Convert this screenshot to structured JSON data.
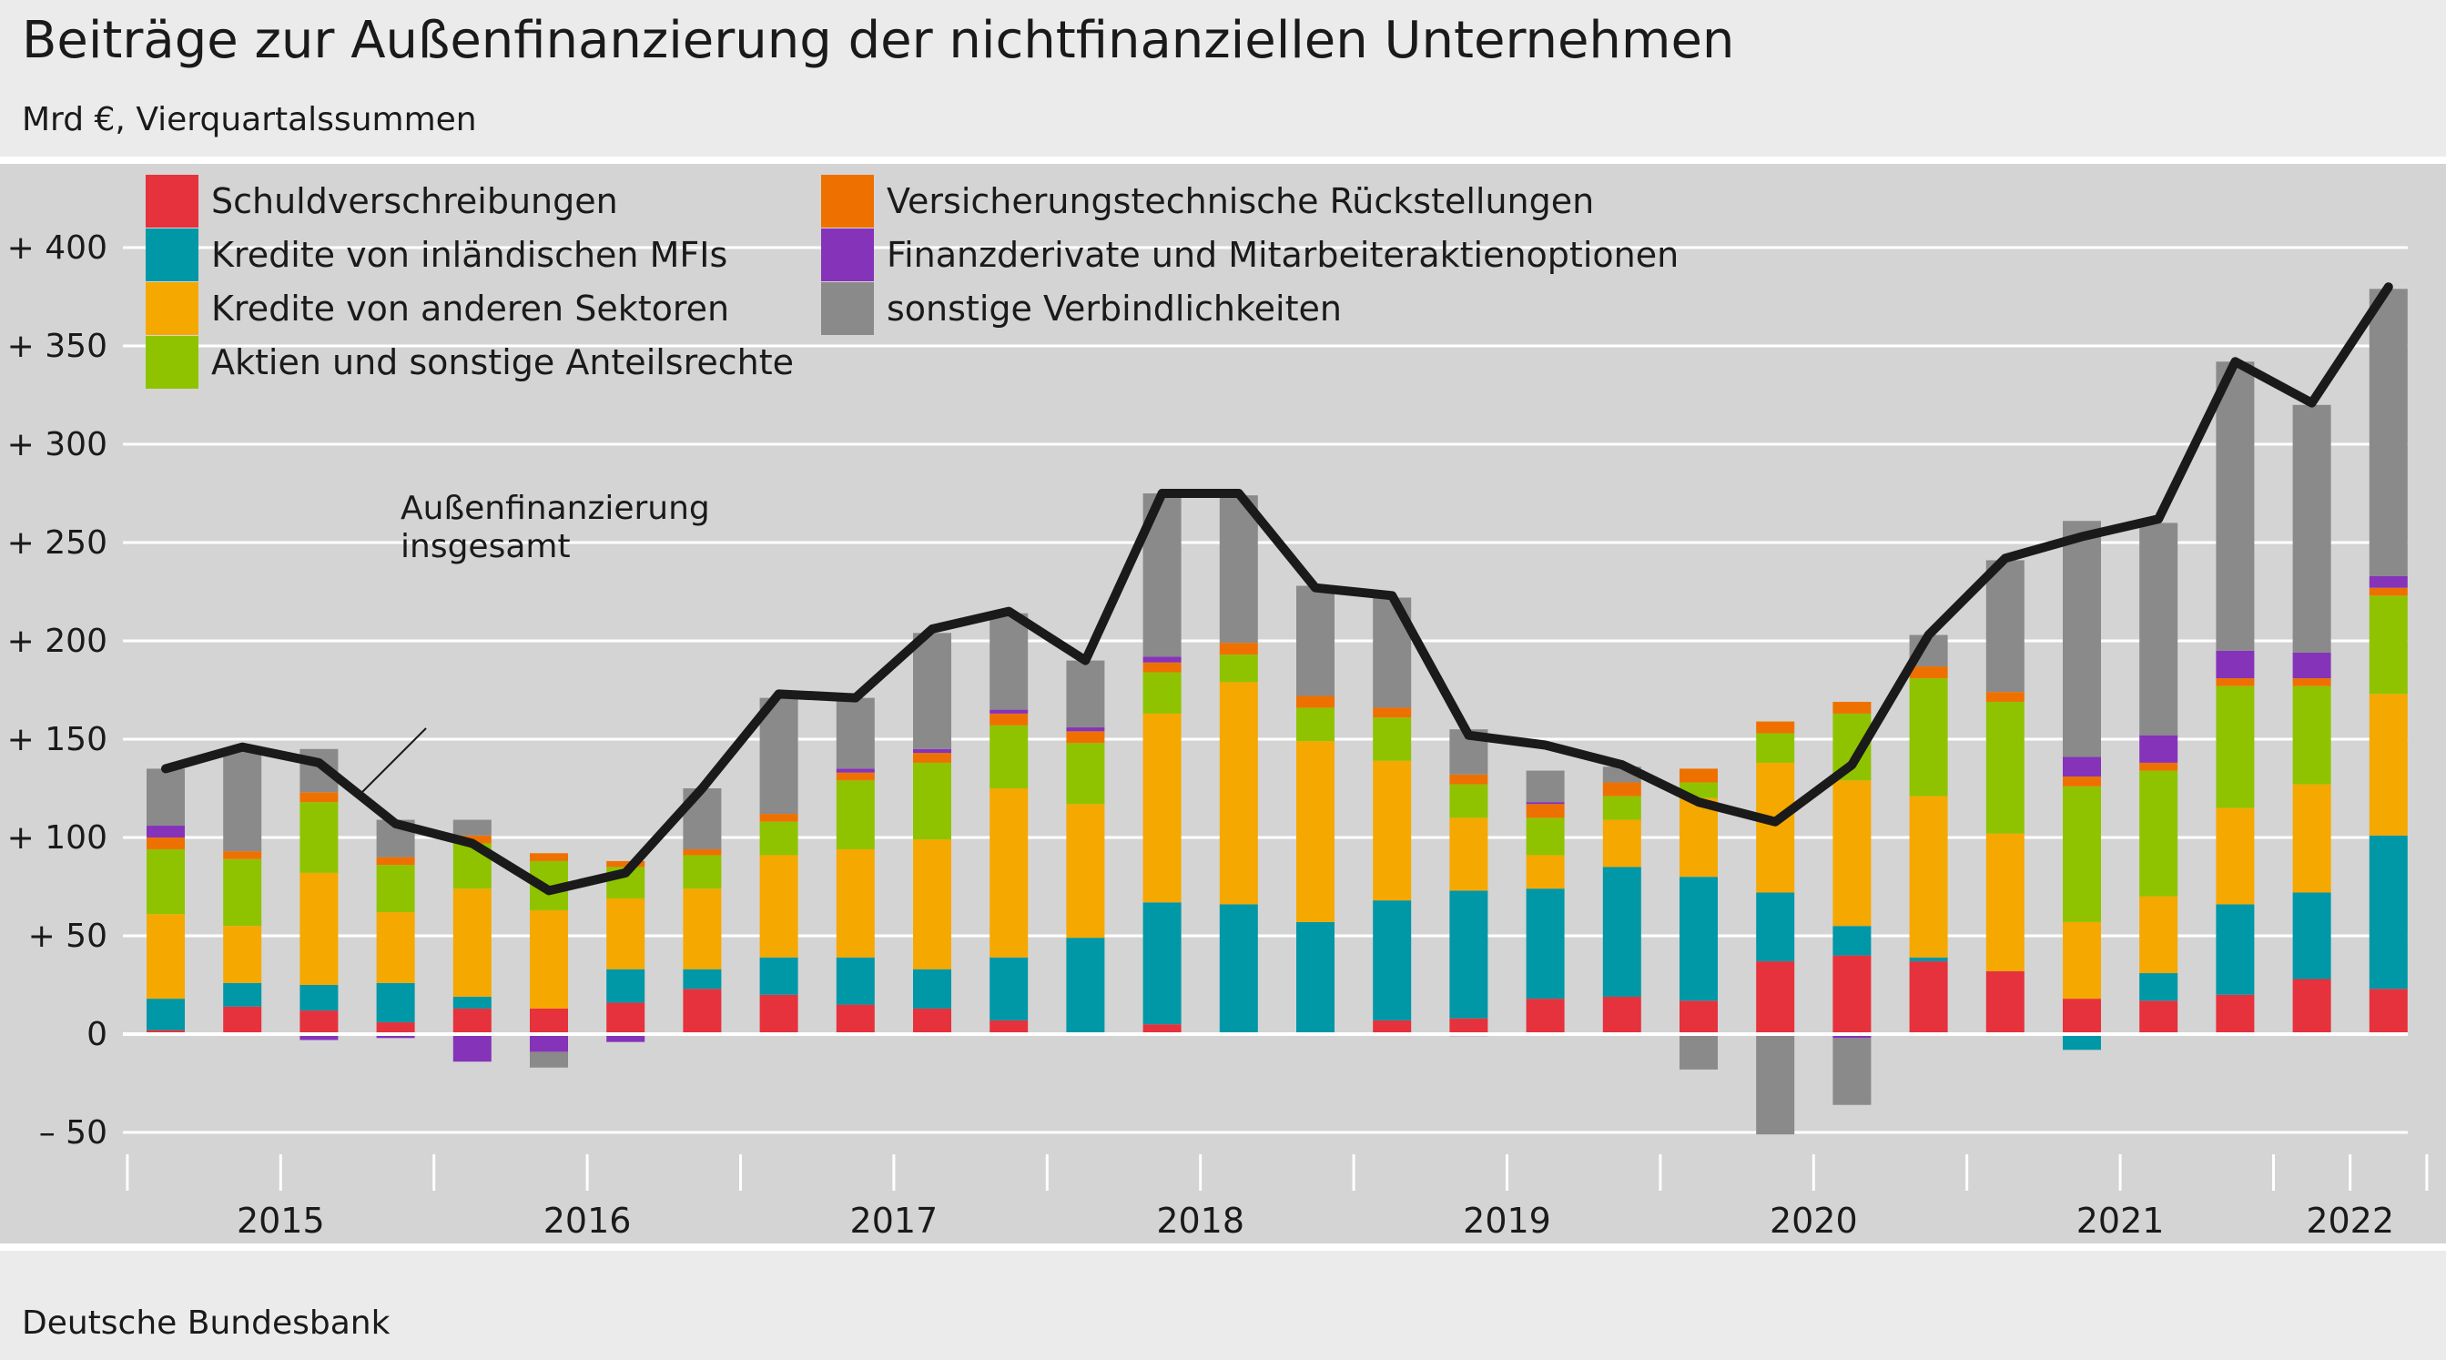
{
  "title": "Beiträge zur Außenfinanzierung der nichtfinanziellen Unternehmen",
  "subtitle": "Mrd €, Vierquartalssummen",
  "source": "Deutsche Bundesbank",
  "chart_data": {
    "type": "bar",
    "stacked": true,
    "ylim": [
      -50,
      430
    ],
    "y_ticks": [
      {
        "value": 400,
        "label": "+ 400"
      },
      {
        "value": 350,
        "label": "+ 350"
      },
      {
        "value": 300,
        "label": "+ 300"
      },
      {
        "value": 250,
        "label": "+ 250"
      },
      {
        "value": 200,
        "label": "+ 200"
      },
      {
        "value": 150,
        "label": "+ 150"
      },
      {
        "value": 100,
        "label": "+ 100"
      },
      {
        "value": 50,
        "label": "+   50"
      },
      {
        "value": 0,
        "label": "0"
      },
      {
        "value": -50,
        "label": "–   50"
      }
    ],
    "grid": true,
    "legend_position": "top-left",
    "x": [
      "2015 Q1",
      "2015 Q2",
      "2015 Q3",
      "2015 Q4",
      "2016 Q1",
      "2016 Q2",
      "2016 Q3",
      "2016 Q4",
      "2017 Q1",
      "2017 Q2",
      "2017 Q3",
      "2017 Q4",
      "2018 Q1",
      "2018 Q2",
      "2018 Q3",
      "2018 Q4",
      "2019 Q1",
      "2019 Q2",
      "2019 Q3",
      "2019 Q4",
      "2020 Q1",
      "2020 Q2",
      "2020 Q3",
      "2020 Q4",
      "2021 Q1",
      "2021 Q2",
      "2021 Q3",
      "2021 Q4",
      "2022 Q1",
      "2022 Q2"
    ],
    "year_labels": [
      {
        "label": "2015",
        "quarters": 4
      },
      {
        "label": "2016",
        "quarters": 4
      },
      {
        "label": "2017",
        "quarters": 4
      },
      {
        "label": "2018",
        "quarters": 4
      },
      {
        "label": "2019",
        "quarters": 4
      },
      {
        "label": "2020",
        "quarters": 4
      },
      {
        "label": "2021",
        "quarters": 4
      },
      {
        "label": "2022",
        "quarters": 2
      }
    ],
    "series": [
      {
        "name": "Schuldverschreibungen",
        "color": "#e5323c",
        "values": [
          2,
          14,
          12,
          6,
          13,
          13,
          16,
          23,
          20,
          15,
          13,
          7,
          0,
          5,
          0,
          0,
          7,
          8,
          18,
          19,
          17,
          37,
          40,
          37,
          32,
          18,
          17,
          20,
          28,
          23
        ]
      },
      {
        "name": "Kredite von inländischen MFIs",
        "color": "#0097a7",
        "values": [
          16,
          12,
          13,
          20,
          6,
          0,
          17,
          10,
          19,
          24,
          20,
          32,
          49,
          62,
          66,
          57,
          61,
          65,
          56,
          66,
          63,
          35,
          15,
          2,
          0,
          -8,
          14,
          46,
          44,
          78
        ]
      },
      {
        "name": "Kredite von anderen Sektoren",
        "color": "#f5a800",
        "values": [
          43,
          29,
          57,
          36,
          55,
          50,
          36,
          41,
          52,
          55,
          66,
          86,
          68,
          96,
          113,
          92,
          71,
          37,
          17,
          24,
          40,
          66,
          74,
          82,
          70,
          39,
          39,
          49,
          55,
          72
        ]
      },
      {
        "name": "Aktien und sonstige Anteilsrechte",
        "color": "#8fc300",
        "values": [
          33,
          34,
          36,
          24,
          23,
          25,
          16,
          17,
          17,
          35,
          39,
          32,
          31,
          21,
          14,
          17,
          22,
          17,
          19,
          12,
          8,
          15,
          34,
          60,
          67,
          69,
          64,
          62,
          50,
          50
        ]
      },
      {
        "name": "Versicherungstechnische Rückstellungen",
        "color": "#ee7100",
        "values": [
          6,
          4,
          5,
          4,
          4,
          4,
          3,
          3,
          4,
          4,
          5,
          6,
          6,
          5,
          6,
          6,
          5,
          5,
          7,
          7,
          7,
          6,
          6,
          6,
          5,
          5,
          4,
          4,
          4,
          4
        ]
      },
      {
        "name": "Finanzderivate und Mitarbeiteraktienoptionen",
        "color": "#8533b9",
        "values": [
          6,
          0,
          -3,
          -2,
          -14,
          -9,
          -4,
          0,
          0,
          2,
          2,
          2,
          2,
          3,
          0,
          0,
          0,
          -1,
          1,
          0,
          0,
          0,
          -2,
          0,
          0,
          10,
          14,
          14,
          13,
          6
        ]
      },
      {
        "name": "sonstige Verbindlichkeiten",
        "color": "#8a8a8a",
        "values": [
          29,
          52,
          22,
          19,
          8,
          -8,
          0,
          31,
          59,
          36,
          59,
          49,
          34,
          83,
          75,
          56,
          56,
          23,
          16,
          8,
          -18,
          -51,
          -34,
          16,
          67,
          120,
          108,
          147,
          126,
          146
        ]
      }
    ],
    "total_line": {
      "name": "Außenfinanzierung insgesamt",
      "color": "#1a1a1a",
      "values": [
        135,
        146,
        138,
        107,
        97,
        73,
        82,
        125,
        173,
        171,
        206,
        215,
        190,
        275,
        275,
        227,
        223,
        152,
        147,
        137,
        118,
        108,
        137,
        203,
        242,
        253,
        262,
        342,
        321,
        380
      ]
    }
  }
}
